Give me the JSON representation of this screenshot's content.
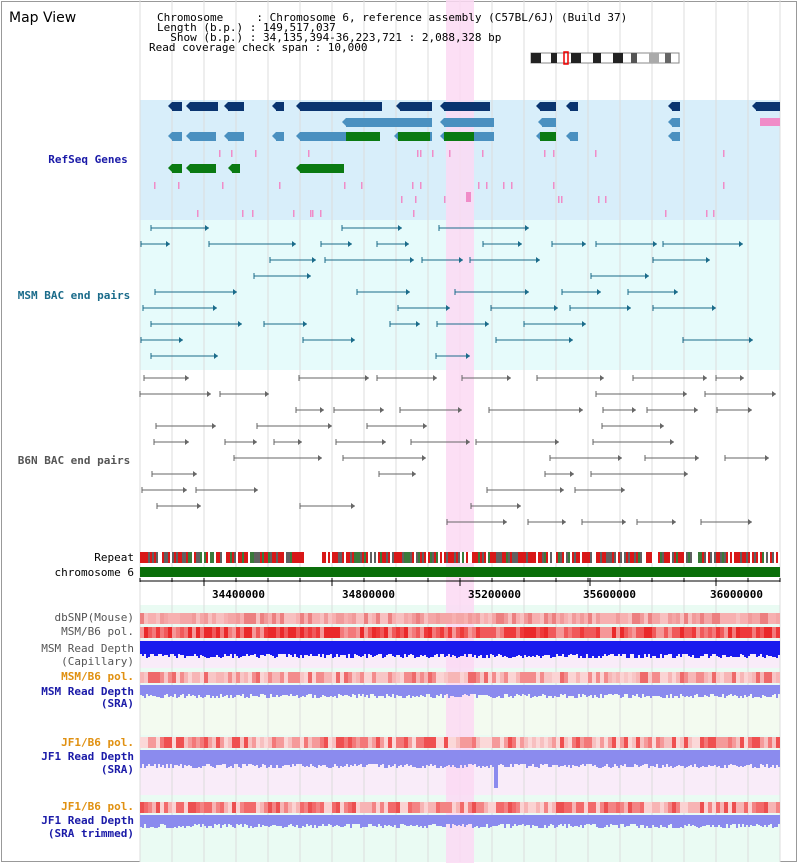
{
  "title": "Map View",
  "info": {
    "chromosome": "Chromosome     : Chromosome 6, reference assembly (C57BL/6J) (Build 37)",
    "length": "Length (b.p.) : 149,517,037",
    "show": "  Show (b.p.) : 34,135,394-36,223,721 : 2,088,328 bp",
    "coverage": "Read coverage check span : 10,000"
  },
  "tracks": {
    "refseq": "RefSeq Genes",
    "msm_bac": "MSM BAC end pairs",
    "b6n_bac": "B6N BAC end pairs",
    "repeat": "Repeat",
    "chromosome": "chromosome 6",
    "dbsnp": "dbSNP(Mouse)",
    "msm_b6_pol_1": "MSM/B6 pol.",
    "msm_depth_cap_1": "MSM Read Depth",
    "msm_depth_cap_2": "(Capillary)",
    "msm_b6_pol_2": "MSM/B6 pol.",
    "msm_depth_sra_1": "MSM Read Depth",
    "msm_depth_sra_2": "(SRA)",
    "jf1_b6_pol_1": "JF1/B6 pol.",
    "jf1_depth_sra_1": "JF1 Read Depth",
    "jf1_depth_sra_2": "(SRA)",
    "jf1_b6_pol_2": "JF1/B6 pol.",
    "jf1_depth_trim_1": "JF1 Read Depth",
    "jf1_depth_trim_2": "(SRA trimmed)"
  },
  "axis_ticks": [
    "34400000",
    "34800000",
    "35200000",
    "35600000",
    "36000000"
  ],
  "colors": {
    "refseq_bg": "#d8eefa",
    "bac_bg": "#e6fbfb",
    "highlight": "#fbd9f3",
    "gene_dark": "#0a3470",
    "gene_mid": "#4a90c0",
    "gene_green": "#0a7a12",
    "gene_pink": "#f08cc8",
    "msm_bac": "#1a6b8a",
    "b6n_bac": "#666666",
    "chrom": "#0a6e0a",
    "depth_blue": "#1a1aee",
    "depth_light": "#8b8bee",
    "label_navy": "#1a1aa8",
    "label_teal": "#1a6b8a",
    "label_orange": "#e09010",
    "label_gray": "#555555"
  }
}
